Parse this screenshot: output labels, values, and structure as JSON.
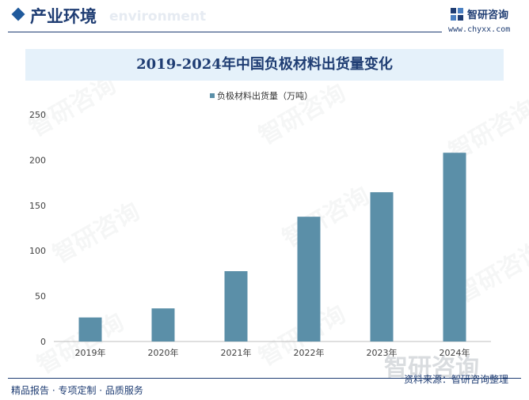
{
  "header": {
    "section_title": "产业环境",
    "section_ghost": "environment",
    "brand_name": "智研咨询",
    "site": "www.chyxx.com"
  },
  "watermark": "智研咨询",
  "footer": {
    "left": "精品报告 · 专项定制 · 品质服务",
    "source": "资料来源：智研咨询整理"
  },
  "colors": {
    "bar": "#5b8fa8",
    "brand": "#1f3d73",
    "title_band": "#e5f1fa"
  },
  "chart_data": {
    "type": "bar",
    "title": "2019-2024年中国负极材料出货量变化",
    "categories": [
      "2019年",
      "2020年",
      "2021年",
      "2022年",
      "2023年",
      "2024年"
    ],
    "series": [
      {
        "name": "负极材料出货量（万吨）",
        "values": [
          26.5,
          36.5,
          77.5,
          137.5,
          164.5,
          208
        ]
      }
    ],
    "ylim": [
      0,
      250
    ],
    "yticks": [
      0,
      50,
      100,
      150,
      200,
      250
    ],
    "legend": "top-center",
    "grid": false
  }
}
